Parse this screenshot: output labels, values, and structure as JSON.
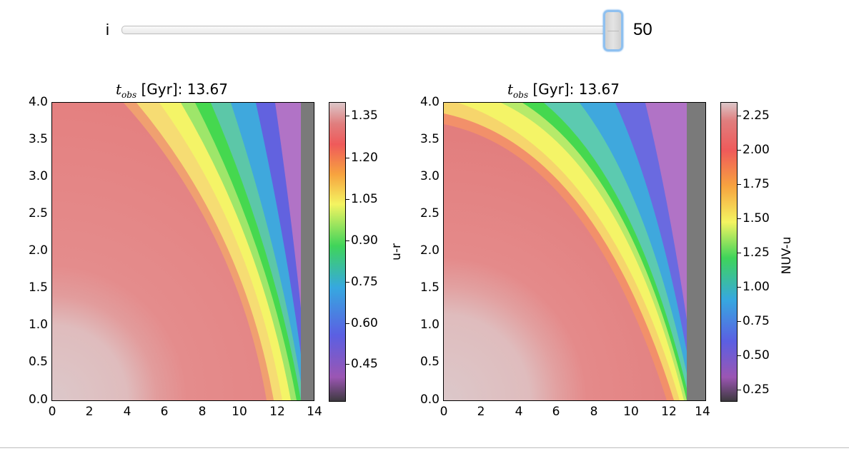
{
  "slider": {
    "label": "i",
    "value": "50",
    "fraction": 0.99
  },
  "panels": [
    {
      "title_symbol": "t",
      "title_sub": "obs",
      "title_rest": " [Gyr]: 13.67",
      "yticks": [
        "4.0",
        "3.5",
        "3.0",
        "2.5",
        "2.0",
        "1.5",
        "1.0",
        "0.5",
        "0.0"
      ],
      "xticks": [
        "0",
        "2",
        "4",
        "6",
        "8",
        "10",
        "12",
        "14"
      ],
      "colorbar_label": "u-r",
      "colorbar_ticks": [
        "1.35",
        "1.20",
        "1.05",
        "0.90",
        "0.75",
        "0.60",
        "0.45"
      ]
    },
    {
      "title_symbol": "t",
      "title_sub": "obs",
      "title_rest": " [Gyr]: 13.67",
      "yticks": [
        "4.0",
        "3.5",
        "3.0",
        "2.5",
        "2.0",
        "1.5",
        "1.0",
        "0.5",
        "0.0"
      ],
      "xticks": [
        "0",
        "2",
        "4",
        "6",
        "8",
        "10",
        "12",
        "14"
      ],
      "colorbar_label": "NUV-u",
      "colorbar_ticks": [
        "2.25",
        "2.00",
        "1.75",
        "1.50",
        "1.25",
        "1.00",
        "0.75",
        "0.50",
        "0.25"
      ]
    }
  ],
  "chart_data": [
    {
      "type": "heatmap",
      "title": "t_obs [Gyr]: 13.67",
      "xlim": [
        0,
        14
      ],
      "ylim": [
        0,
        4
      ],
      "x_ticks": [
        0,
        2,
        4,
        6,
        8,
        10,
        12,
        14
      ],
      "y_ticks": [
        0.0,
        0.5,
        1.0,
        1.5,
        2.0,
        2.5,
        3.0,
        3.5,
        4.0
      ],
      "colorbar": {
        "label": "u-r",
        "range": [
          0.32,
          1.42
        ],
        "ticks": [
          0.45,
          0.6,
          0.75,
          0.9,
          1.05,
          1.2,
          1.35
        ]
      },
      "colormap": [
        "#3e3a40",
        "#9b56b3",
        "#5b5fe2",
        "#36a8e0",
        "#3fd45a",
        "#f4f461",
        "#f7a33f",
        "#ef5a5a",
        "#e07e7e",
        "#dcc6c8"
      ],
      "background": "#7a7a7a"
    },
    {
      "type": "heatmap",
      "title": "t_obs [Gyr]: 13.67",
      "xlim": [
        0,
        14
      ],
      "ylim": [
        0,
        4
      ],
      "x_ticks": [
        0,
        2,
        4,
        6,
        8,
        10,
        12,
        14
      ],
      "y_ticks": [
        0.0,
        0.5,
        1.0,
        1.5,
        2.0,
        2.5,
        3.0,
        3.5,
        4.0
      ],
      "colorbar": {
        "label": "NUV-u",
        "range": [
          0.15,
          2.35
        ],
        "ticks": [
          0.25,
          0.5,
          0.75,
          1.0,
          1.25,
          1.5,
          1.75,
          2.0,
          2.25
        ]
      },
      "colormap": [
        "#3e3a40",
        "#9b56b3",
        "#5b5fe2",
        "#36a8e0",
        "#3fd45a",
        "#f4f461",
        "#f7a33f",
        "#ef5a5a",
        "#e07e7e",
        "#dcc6c8"
      ],
      "background": "#7a7a7a"
    }
  ]
}
